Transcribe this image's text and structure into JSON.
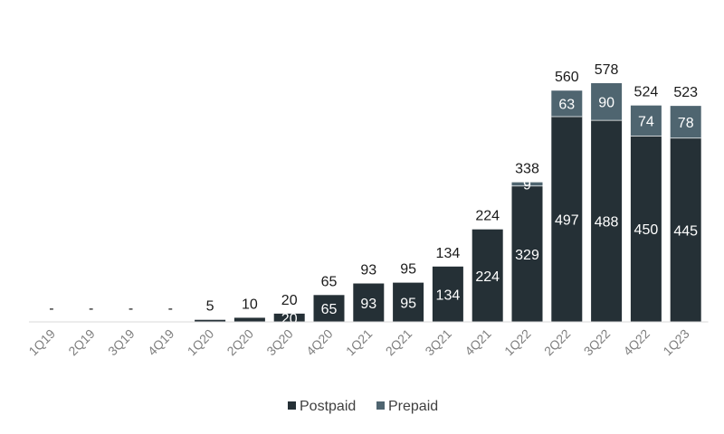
{
  "chart_data": {
    "type": "bar",
    "stacked": true,
    "categories": [
      "1Q19",
      "2Q19",
      "3Q19",
      "4Q19",
      "1Q20",
      "2Q20",
      "3Q20",
      "4Q20",
      "1Q21",
      "2Q21",
      "3Q21",
      "4Q21",
      "1Q22",
      "2Q22",
      "3Q22",
      "4Q22",
      "1Q23"
    ],
    "series": [
      {
        "name": "Postpaid",
        "color": "#253036",
        "values": [
          0,
          0,
          0,
          0,
          5,
          10,
          20,
          65,
          93,
          95,
          134,
          224,
          329,
          497,
          488,
          450,
          445
        ],
        "labels": [
          "",
          "",
          "",
          "",
          "",
          "",
          "20",
          "65",
          "93",
          "95",
          "134",
          "224",
          "329",
          "497",
          "488",
          "450",
          "445"
        ]
      },
      {
        "name": "Prepaid",
        "color": "#4f6570",
        "values": [
          0,
          0,
          0,
          0,
          0,
          0,
          0,
          0,
          0,
          0,
          0,
          0,
          9,
          63,
          90,
          74,
          78
        ],
        "labels": [
          "",
          "",
          "",
          "",
          "",
          "",
          "",
          "",
          "",
          "",
          "",
          "",
          "9",
          "63",
          "90",
          "74",
          "78"
        ]
      }
    ],
    "totals": [
      "-",
      "-",
      "-",
      "-",
      "5",
      "10",
      "20",
      "65",
      "93",
      "95",
      "134",
      "224",
      "338",
      "560",
      "578",
      "524",
      "523"
    ],
    "ylim": [
      0,
      600
    ],
    "grid": false,
    "legend_position": "bottom-center",
    "title": "",
    "xlabel": "",
    "ylabel": ""
  }
}
